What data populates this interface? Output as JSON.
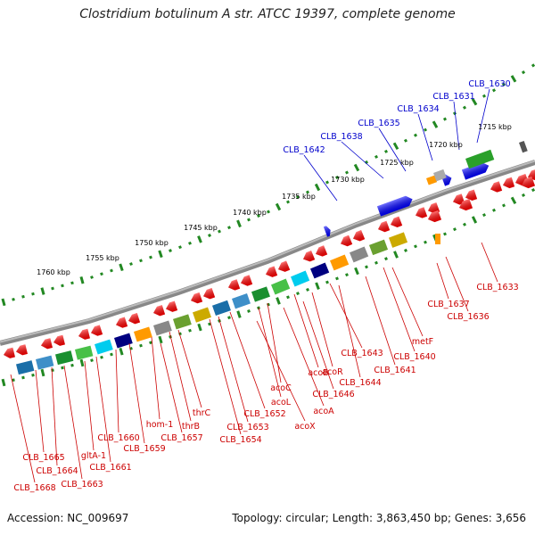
{
  "title": "Clostridium botulinum A str. ATCC 19397, complete genome",
  "accession": "Accession: NC_009697",
  "topology": "Topology: circular; Length: 3,863,450 bp; Genes: 3,656",
  "ruler_labels": [
    "1715 kbp",
    "1720 kbp",
    "1725 kbp",
    "1730 kbp",
    "1735 kbp",
    "1740 kbp",
    "1745 kbp",
    "1750 kbp",
    "1755 kbp",
    "1760 kbp"
  ],
  "top_labels": [
    "CLB_1630",
    "CLB_1631",
    "CLB_1634",
    "CLB_1635",
    "CLB_1638",
    "CLB_1642"
  ],
  "bottom_labels": [
    "CLB_1633",
    "CLB_1636",
    "CLB_1637",
    "metF",
    "CLB_1640",
    "CLB_1641",
    "CLB_1643",
    "CLB_1644",
    "acoR",
    "acoB",
    "CLB_1646",
    "acoA",
    "acoC",
    "acoL",
    "acoX",
    "CLB_1652",
    "CLB_1653",
    "CLB_1654",
    "thrC",
    "thrB",
    "hom-1",
    "CLB_1657",
    "CLB_1659",
    "CLB_1660",
    "CLB_1661",
    "gltA-1",
    "CLB_1663",
    "CLB_1664",
    "CLB_1665",
    "CLB_1668"
  ],
  "colors": {
    "forward_gene": "#0000ff",
    "reverse_gene": "#ff0000",
    "backbone": "#888888",
    "ruler": "#228822",
    "label_top": "#0000cc",
    "label_bottom": "#cc0000"
  }
}
